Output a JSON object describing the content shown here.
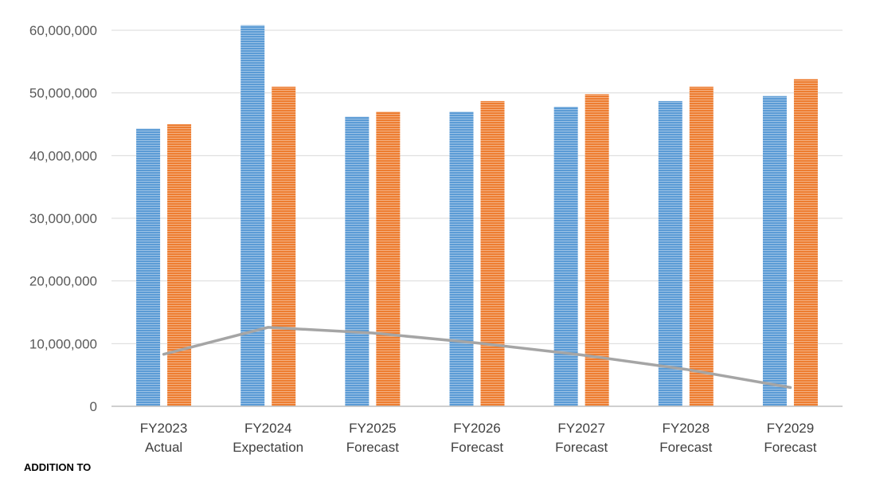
{
  "chart_data": {
    "type": "bar",
    "categories": [
      [
        "FY2023",
        "Actual"
      ],
      [
        "FY2024",
        "Expectation"
      ],
      [
        "FY2025",
        "Forecast"
      ],
      [
        "FY2026",
        "Forecast"
      ],
      [
        "FY2027",
        "Forecast"
      ],
      [
        "FY2028",
        "Forecast"
      ],
      [
        "FY2029",
        "Forecast"
      ]
    ],
    "series": [
      {
        "type": "bar",
        "color": "#5B9BD5",
        "values": [
          44300000,
          60800000,
          46200000,
          47000000,
          47800000,
          48700000,
          49500000
        ]
      },
      {
        "type": "bar",
        "color": "#ED7D31",
        "values": [
          45000000,
          51000000,
          47000000,
          48700000,
          49800000,
          51000000,
          52200000
        ]
      },
      {
        "type": "line",
        "color": "#A5A5A5",
        "values": [
          8300000,
          12600000,
          11700000,
          10100000,
          8200000,
          5900000,
          3000000
        ]
      }
    ],
    "yticks": [
      "0",
      "10,000,000",
      "20,000,000",
      "30,000,000",
      "40,000,000",
      "50,000,000",
      "60,000,000"
    ],
    "ylim": [
      0,
      60000000
    ],
    "grid": true,
    "legend": "none"
  },
  "footer": {
    "text": "ADDITION TO"
  }
}
